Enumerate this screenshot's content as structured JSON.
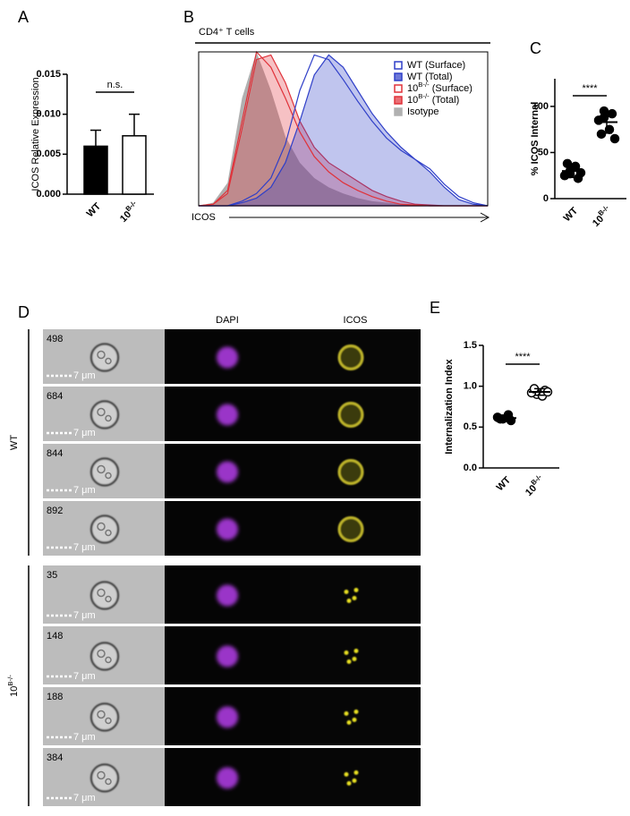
{
  "chart_data": [
    {
      "type": "bar",
      "panel": "A",
      "ylabel": "ICOS Relative Expression",
      "categories": [
        "WT",
        "10B-/-"
      ],
      "values": [
        0.006,
        0.0073
      ],
      "errors": [
        0.002,
        0.0027
      ],
      "colors": [
        "#000000",
        "#ffffff"
      ],
      "ylim": [
        0,
        0.015
      ],
      "yticks": [
        {
          "value": 0,
          "label": "0.000"
        },
        {
          "value": 0.005,
          "label": "0.005"
        },
        {
          "value": 0.01,
          "label": "0.010"
        },
        {
          "value": 0.015,
          "label": "0.015"
        }
      ],
      "annotation": "n.s."
    },
    {
      "type": "area",
      "panel": "B",
      "title": "CD4⁺ T cells",
      "xlabel": "ICOS",
      "x": [
        0,
        1,
        2,
        3,
        4,
        5,
        6,
        7,
        8,
        9,
        10,
        11,
        12,
        13,
        14,
        15,
        16,
        17,
        18,
        19,
        20
      ],
      "xlim": [
        0,
        20
      ],
      "ylim": [
        0,
        100
      ],
      "series": [
        {
          "name": "Isotype",
          "color": "#b0b0b0",
          "filled": true,
          "values": [
            0,
            2,
            15,
            70,
            100,
            75,
            45,
            28,
            18,
            12,
            8,
            5,
            3,
            2,
            1,
            0.5,
            0,
            0,
            0,
            0,
            0
          ]
        },
        {
          "name": "10B-/- (Total)",
          "color": "#e0323a",
          "filled": true,
          "values": [
            0,
            1,
            8,
            50,
            95,
            98,
            80,
            55,
            38,
            28,
            22,
            16,
            10,
            6,
            3,
            1,
            0.5,
            0,
            0,
            0,
            0
          ]
        },
        {
          "name": "WT (Total)",
          "color": "#2f3fc8",
          "filled": true,
          "values": [
            0,
            0,
            0,
            2,
            5,
            12,
            28,
            55,
            85,
            98,
            90,
            75,
            60,
            48,
            38,
            30,
            22,
            12,
            4,
            1,
            0
          ]
        },
        {
          "name": "10B-/- (Surface)",
          "color": "#e0323a",
          "filled": false,
          "values": [
            0,
            1,
            10,
            55,
            100,
            90,
            70,
            48,
            32,
            22,
            15,
            10,
            6,
            3,
            1,
            0.5,
            0,
            0,
            0,
            0,
            0
          ]
        },
        {
          "name": "WT (Surface)",
          "color": "#2f3fc8",
          "filled": false,
          "values": [
            0,
            0,
            0,
            3,
            8,
            18,
            40,
            75,
            98,
            95,
            82,
            68,
            55,
            44,
            36,
            30,
            24,
            14,
            6,
            2,
            0
          ]
        }
      ]
    },
    {
      "type": "strip",
      "panel": "C",
      "ylabel": "% ICOS  Internal",
      "categories": [
        "WT",
        "10B-/-"
      ],
      "points": [
        [
          30,
          22,
          25,
          35,
          38,
          28,
          27
        ],
        [
          95,
          92,
          85,
          75,
          70,
          65,
          88
        ]
      ],
      "mean": [
        30,
        83
      ],
      "sd": [
        7,
        12
      ],
      "fills": [
        "#000000",
        "#000000"
      ],
      "ylim": [
        0,
        130
      ],
      "yticks": [
        0,
        50,
        100
      ],
      "annotation": "****"
    },
    {
      "type": "strip",
      "panel": "E",
      "ylabel": "Internalization Index",
      "categories": [
        "WT",
        "10B-/-"
      ],
      "points": [
        [
          0.6,
          0.58,
          0.62,
          0.65,
          0.6
        ],
        [
          0.9,
          0.95,
          0.92,
          0.88,
          0.97,
          0.93
        ]
      ],
      "mean": [
        0.61,
        0.93
      ],
      "sd": [
        0.03,
        0.04
      ],
      "fills": [
        "#000000",
        "#ffffff"
      ],
      "ylim": [
        0,
        1.5
      ],
      "yticks": [
        {
          "value": 0,
          "label": "0.0"
        },
        {
          "value": 0.5,
          "label": "0.5"
        },
        {
          "value": 1,
          "label": "1.0"
        },
        {
          "value": 1.5,
          "label": "1.5"
        }
      ],
      "annotation": "****"
    }
  ],
  "image_panel": {
    "label": "D",
    "columns": [
      "DAPI",
      "ICOS"
    ],
    "scale": "7 μm",
    "groups": [
      {
        "label": "WT",
        "ids": [
          "498",
          "684",
          "844",
          "892"
        ]
      },
      {
        "label": "10B-/-",
        "ids": [
          "35",
          "148",
          "188",
          "384"
        ]
      }
    ]
  }
}
